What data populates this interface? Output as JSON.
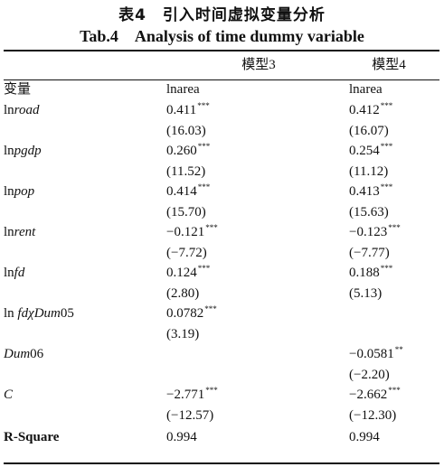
{
  "title_cn": "表4　引入时间虚拟变量分析",
  "title_en": "Tab.4　Analysis of time dummy variable",
  "header": {
    "variable": "",
    "model3": "模型3",
    "model4": "模型4"
  },
  "depvar_row": {
    "label": "变量",
    "model3": "lnarea",
    "model4": "lnarea"
  },
  "rows": [
    {
      "prefix": "ln",
      "name": "road",
      "suffix": "",
      "m3": {
        "coef": "0.411",
        "stars": "***",
        "se": "(16.03)"
      },
      "m4": {
        "coef": "0.412",
        "stars": "***",
        "se": "(16.07)"
      }
    },
    {
      "prefix": "ln",
      "name": "pgdp",
      "suffix": "",
      "m3": {
        "coef": "0.260",
        "stars": "***",
        "se": "(11.52)"
      },
      "m4": {
        "coef": "0.254",
        "stars": "***",
        "se": "(11.12)"
      }
    },
    {
      "prefix": "ln",
      "name": "pop",
      "suffix": "",
      "m3": {
        "coef": "0.414",
        "stars": "***",
        "se": "(15.70)"
      },
      "m4": {
        "coef": "0.413",
        "stars": "***",
        "se": "(15.63)"
      }
    },
    {
      "prefix": "ln",
      "name": "rent",
      "suffix": "",
      "m3": {
        "coef": "−0.121",
        "stars": "***",
        "se": "(−7.72)"
      },
      "m4": {
        "coef": "−0.123",
        "stars": "***",
        "se": "(−7.77)"
      }
    },
    {
      "prefix": "ln",
      "name": "fd",
      "suffix": "",
      "m3": {
        "coef": "0.124",
        "stars": "***",
        "se": "(2.80)"
      },
      "m4": {
        "coef": "0.188",
        "stars": "***",
        "se": "(5.13)"
      }
    },
    {
      "prefix": "ln ",
      "name": "fdχDum",
      "suffix": "05",
      "m3": {
        "coef": "0.0782",
        "stars": "***",
        "se": "(3.19)"
      },
      "m4": {
        "coef": "",
        "stars": "",
        "se": ""
      }
    },
    {
      "prefix": "",
      "name": "Dum",
      "suffix": "06",
      "m3": {
        "coef": "",
        "stars": "",
        "se": ""
      },
      "m4": {
        "coef": "−0.0581",
        "stars": "**",
        "se": "(−2.20)"
      }
    },
    {
      "prefix": "",
      "name": "C",
      "suffix": "",
      "m3": {
        "coef": "−2.771",
        "stars": "***",
        "se": "(−12.57)"
      },
      "m4": {
        "coef": "−2.662",
        "stars": "***",
        "se": "(−12.30)"
      }
    }
  ],
  "rsquare": {
    "label": "R-Square",
    "model3": "0.994",
    "model4": "0.994"
  }
}
